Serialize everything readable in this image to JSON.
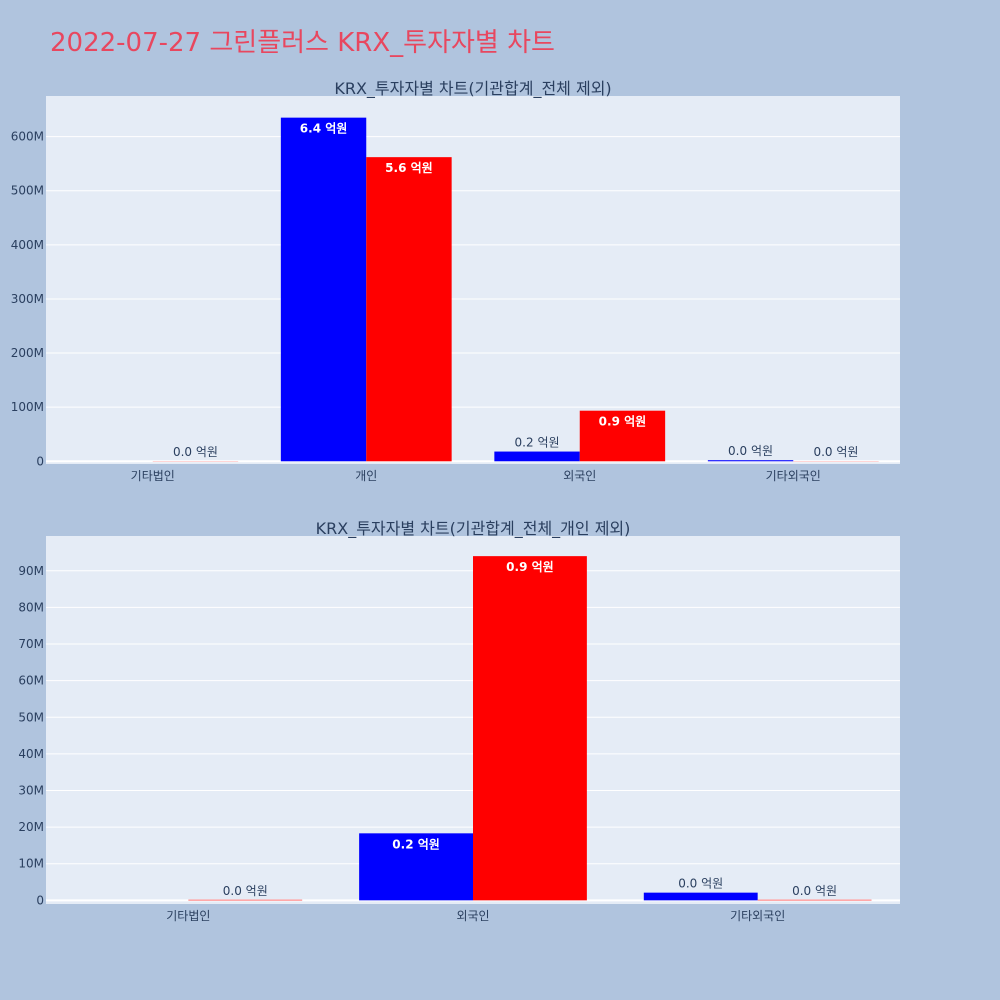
{
  "page": {
    "title": "2022-07-27 그린플러스 KRX_투자자별 차트"
  },
  "chart_data": [
    {
      "type": "bar",
      "title": "KRX_투자자별 차트(기관합계_전체 제외)",
      "categories": [
        "기타법인",
        "개인",
        "외국인",
        "기타외국인"
      ],
      "series": [
        {
          "color": "#0000ff",
          "values": [
            0,
            635000000,
            18000000,
            2000000
          ],
          "labels": [
            "",
            "6.4 억원",
            "0.2 억원",
            "0.0 억원"
          ]
        },
        {
          "color": "#ff0000",
          "values": [
            300000,
            562000000,
            93500000,
            300000
          ],
          "labels": [
            "0.0 억원",
            "5.6 억원",
            "0.9 억원",
            "0.0 억원"
          ]
        }
      ],
      "yticks": [
        0,
        100000000,
        200000000,
        300000000,
        400000000,
        500000000,
        600000000
      ],
      "ytick_labels": [
        "0",
        "100M",
        "200M",
        "300M",
        "400M",
        "500M",
        "600M"
      ],
      "ylim": [
        -5000000,
        675000000
      ],
      "grid": true,
      "background": "#e5ecf6"
    },
    {
      "type": "bar",
      "title": "KRX_투자자별 차트(기관합계_전체_개인 제외)",
      "categories": [
        "기타법인",
        "외국인",
        "기타외국인"
      ],
      "series": [
        {
          "color": "#0000ff",
          "values": [
            0,
            18300000,
            2100000
          ],
          "labels": [
            "",
            "0.2 억원",
            "0.0 억원"
          ]
        },
        {
          "color": "#ff0000",
          "values": [
            150000,
            94000000,
            150000
          ],
          "labels": [
            "0.0 억원",
            "0.9 억원",
            "0.0 억원"
          ]
        }
      ],
      "yticks": [
        0,
        10000000,
        20000000,
        30000000,
        40000000,
        50000000,
        60000000,
        70000000,
        80000000,
        90000000
      ],
      "ytick_labels": [
        "0",
        "10M",
        "20M",
        "30M",
        "40M",
        "50M",
        "60M",
        "70M",
        "80M",
        "90M"
      ],
      "ylim": [
        -1000000,
        99500000
      ],
      "grid": true,
      "background": "#e5ecf6"
    }
  ]
}
